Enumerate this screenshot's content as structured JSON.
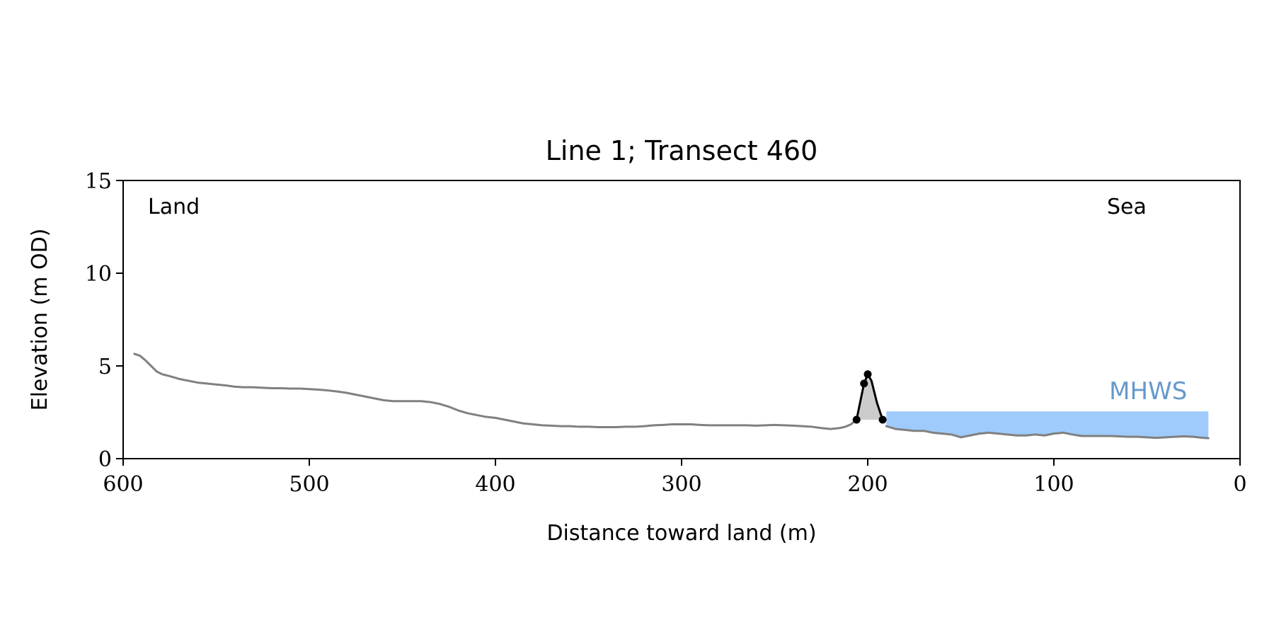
{
  "chart_data": {
    "type": "line",
    "title": "Line 1; Transect 460",
    "xlabel": "Distance toward land (m)",
    "ylabel": "Elevation (m OD)",
    "xlim": [
      600,
      0
    ],
    "ylim": [
      0,
      15
    ],
    "x_axis_reversed": true,
    "xticks": [
      600,
      500,
      400,
      300,
      200,
      100,
      0
    ],
    "yticks": [
      0,
      5,
      10,
      15
    ],
    "grid": false,
    "legend": "none",
    "annotations": {
      "land": "Land",
      "sea": "Sea",
      "mhws": "MHWS"
    },
    "mhws_level": 2.55,
    "mhws_x_range": [
      190,
      17
    ],
    "series": [
      {
        "role": "profile",
        "color": "#808080",
        "x": [
          594,
          591,
          588,
          585,
          582,
          579,
          575,
          570,
          565,
          560,
          555,
          550,
          545,
          540,
          535,
          530,
          525,
          520,
          515,
          510,
          505,
          500,
          495,
          490,
          485,
          480,
          475,
          470,
          465,
          460,
          455,
          450,
          445,
          440,
          435,
          430,
          425,
          420,
          415,
          410,
          405,
          400,
          395,
          390,
          385,
          380,
          375,
          370,
          365,
          360,
          355,
          350,
          345,
          340,
          335,
          330,
          325,
          320,
          315,
          310,
          305,
          300,
          295,
          290,
          285,
          280,
          275,
          270,
          265,
          260,
          255,
          250,
          245,
          240,
          235,
          230,
          225,
          220,
          215,
          212,
          209,
          206
        ],
        "y": [
          5.65,
          5.55,
          5.3,
          5.0,
          4.7,
          4.55,
          4.45,
          4.3,
          4.2,
          4.1,
          4.05,
          4.0,
          3.95,
          3.88,
          3.85,
          3.85,
          3.82,
          3.8,
          3.8,
          3.78,
          3.78,
          3.75,
          3.72,
          3.68,
          3.62,
          3.55,
          3.45,
          3.35,
          3.25,
          3.15,
          3.1,
          3.1,
          3.1,
          3.1,
          3.05,
          2.95,
          2.8,
          2.6,
          2.45,
          2.35,
          2.25,
          2.2,
          2.1,
          2.0,
          1.9,
          1.85,
          1.8,
          1.78,
          1.75,
          1.75,
          1.72,
          1.72,
          1.7,
          1.7,
          1.7,
          1.72,
          1.72,
          1.75,
          1.8,
          1.82,
          1.85,
          1.85,
          1.85,
          1.82,
          1.8,
          1.8,
          1.8,
          1.8,
          1.8,
          1.78,
          1.8,
          1.82,
          1.8,
          1.78,
          1.75,
          1.72,
          1.65,
          1.6,
          1.65,
          1.72,
          1.85,
          2.1
        ]
      },
      {
        "role": "dune",
        "color": "#000000",
        "x": [
          206,
          202,
          200,
          198,
          195,
          192
        ],
        "y": [
          2.1,
          4.05,
          4.55,
          4.2,
          3.0,
          2.1
        ],
        "markers": [
          {
            "x": 206,
            "y": 2.1
          },
          {
            "x": 202,
            "y": 4.05
          },
          {
            "x": 200,
            "y": 4.55
          },
          {
            "x": 192,
            "y": 2.1
          }
        ]
      },
      {
        "role": "seaward",
        "color": "#808080",
        "x": [
          190,
          185,
          180,
          175,
          170,
          165,
          160,
          155,
          150,
          145,
          140,
          135,
          130,
          125,
          120,
          115,
          110,
          105,
          100,
          95,
          90,
          85,
          80,
          75,
          70,
          65,
          60,
          55,
          50,
          45,
          40,
          35,
          30,
          25,
          20,
          17
        ],
        "y": [
          1.75,
          1.6,
          1.55,
          1.5,
          1.5,
          1.4,
          1.35,
          1.3,
          1.15,
          1.25,
          1.35,
          1.4,
          1.35,
          1.3,
          1.25,
          1.25,
          1.3,
          1.25,
          1.35,
          1.4,
          1.3,
          1.22,
          1.22,
          1.22,
          1.22,
          1.2,
          1.18,
          1.18,
          1.15,
          1.12,
          1.15,
          1.18,
          1.2,
          1.18,
          1.12,
          1.1
        ]
      }
    ],
    "colors": {
      "profile": "#808080",
      "dune_fill": "#cccccc",
      "mhws_fill": "#9ecbfb",
      "mhws_label": "#6699cc"
    }
  }
}
